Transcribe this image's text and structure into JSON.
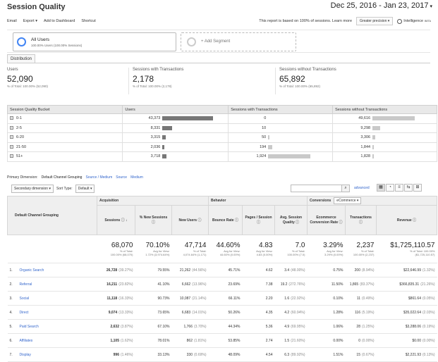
{
  "header": {
    "title": "Session Quality",
    "date_range": "Dec 25, 2016 - Jan 23, 2017"
  },
  "toolbar": {
    "items": [
      "Email",
      "Export",
      "Add to Dashboard",
      "Shortcut"
    ],
    "report_note": "This report is based on 100% of sessions. Learn more",
    "precision": "Greater precision",
    "intelligence": "Intelligence",
    "intelligence_badge": "BETA"
  },
  "segments": {
    "active_name": "All Users",
    "active_sub": "100.00% Users (100.00% Sessions)",
    "add_label": "+ Add Segment"
  },
  "tab": "Distribution",
  "summary": [
    {
      "label": "Users",
      "value": "52,090",
      "sub": "% of Total: 100.00% (52,090)"
    },
    {
      "label": "Sessions with Transactions",
      "value": "2,178",
      "sub": "% of Total: 100.00% (2,178)"
    },
    {
      "label": "Sessions without Transactions",
      "value": "65,892",
      "sub": "% of Total: 100.00% (65,892)"
    }
  ],
  "quality_table": {
    "headers": [
      "Session Quality Bucket",
      "Users",
      "Sessions with Transactions",
      "Sessions without Transactions"
    ],
    "rows": [
      {
        "bucket": "0-1",
        "users": "43,373",
        "users_frac": 1.0,
        "with": "0",
        "with_frac": 0.0,
        "without": "49,616",
        "without_frac": 1.0
      },
      {
        "bucket": "2-5",
        "users": "8,331",
        "users_frac": 0.19,
        "with": "10",
        "with_frac": 0.005,
        "without": "9,298",
        "without_frac": 0.19
      },
      {
        "bucket": "6-20",
        "users": "3,315",
        "users_frac": 0.076,
        "with": "50",
        "with_frac": 0.026,
        "without": "3,306",
        "without_frac": 0.067
      },
      {
        "bucket": "21-50",
        "users": "2,036",
        "users_frac": 0.047,
        "with": "194",
        "with_frac": 0.1,
        "without": "1,844",
        "without_frac": 0.037
      },
      {
        "bucket": "51+",
        "users": "3,718",
        "users_frac": 0.086,
        "with": "1,924",
        "with_frac": 1.0,
        "without": "1,828",
        "without_frac": 0.037
      }
    ]
  },
  "dimensions": {
    "label": "Primary Dimension:",
    "active": "Default Channel Grouping",
    "others": [
      "Source / Medium",
      "Source",
      "Medium"
    ]
  },
  "controls": {
    "secondary": "Secondary dimension",
    "sort_label": "Sort Type:",
    "sort_value": "Default",
    "advanced": "advanced"
  },
  "data_table": {
    "dim_header": "Default Channel Grouping",
    "groups": {
      "acquisition": "Acquisition",
      "behavior": "Behavior",
      "conversions": "Conversions",
      "conv_select": "eCommerce"
    },
    "columns": [
      "Sessions",
      "% New Sessions",
      "New Users",
      "Bounce Rate",
      "Pages / Session",
      "Avg. Session Quality",
      "Ecommerce Conversion Rate",
      "Transactions",
      "Revenue"
    ],
    "totals": [
      {
        "big": "68,070",
        "sub1": "% of Total:",
        "sub2": "100.00% (68,070)"
      },
      {
        "big": "70.10%",
        "sub1": "Avg for View:",
        "sub2": "1.72% (3,974.64%)"
      },
      {
        "big": "47,714",
        "sub1": "% of Total:",
        "sub2": "4,074.64% (1,171)"
      },
      {
        "big": "44.60%",
        "sub1": "Avg for View:",
        "sub2": "44.60% (0.00%)"
      },
      {
        "big": "4.83",
        "sub1": "Avg for View:",
        "sub2": "4.83 (0.00%)"
      },
      {
        "big": "7.0",
        "sub1": "% of Total:",
        "sub2": "100.00% (7.0)"
      },
      {
        "big": "3.29%",
        "sub1": "Avg for View:",
        "sub2": "3.29% (0.00%)"
      },
      {
        "big": "2,237",
        "sub1": "% of Total:",
        "sub2": "100.00% (2,237)"
      },
      {
        "big": "$1,725,110.57",
        "sub1": "% of Total: 100.00%",
        "sub2": "($1,725,110.57)"
      }
    ],
    "rows": [
      {
        "idx": "1.",
        "name": "Organic Search",
        "sessions": "26,728",
        "sessions_pct": "(39.27%)",
        "new_sessions": "79.55%",
        "new_users": "21,262",
        "new_users_pct": "(44.56%)",
        "bounce": "45.71%",
        "pages": "4.62",
        "quality": "3.4",
        "quality_pct": "(48.00%)",
        "conv": "0.75%",
        "trans": "200",
        "trans_pct": "(8.94%)",
        "revenue": "$22,646.99",
        "revenue_pct": "(1.32%)"
      },
      {
        "idx": "2.",
        "name": "Referral",
        "sessions": "16,211",
        "sessions_pct": "(23.82%)",
        "new_sessions": "41.10%",
        "new_users": "6,662",
        "new_users_pct": "(13.96%)",
        "bounce": "23.69%",
        "pages": "7.38",
        "quality": "19.2",
        "quality_pct": "(272.76%)",
        "conv": "11.50%",
        "trans": "1,865",
        "trans_pct": "(83.37%)",
        "revenue": "$366,835.31",
        "revenue_pct": "(21.26%)"
      },
      {
        "idx": "3.",
        "name": "Social",
        "sessions": "11,118",
        "sessions_pct": "(16.33%)",
        "new_sessions": "90.73%",
        "new_users": "10,087",
        "new_users_pct": "(21.14%)",
        "bounce": "66.11%",
        "pages": "2.20",
        "quality": "1.6",
        "quality_pct": "(22.92%)",
        "conv": "0.10%",
        "trans": "11",
        "trans_pct": "(0.49%)",
        "revenue": "$861.64",
        "revenue_pct": "(0.05%)"
      },
      {
        "idx": "4.",
        "name": "Direct",
        "sessions": "9,074",
        "sessions_pct": "(13.33%)",
        "new_sessions": "73.65%",
        "new_users": "6,683",
        "new_users_pct": "(14.01%)",
        "bounce": "50.26%",
        "pages": "4.35",
        "quality": "4.2",
        "quality_pct": "(60.94%)",
        "conv": "1.28%",
        "trans": "116",
        "trans_pct": "(5.19%)",
        "revenue": "$35,022.64",
        "revenue_pct": "(2.03%)"
      },
      {
        "idx": "5.",
        "name": "Paid Search",
        "sessions": "2,632",
        "sessions_pct": "(3.87%)",
        "new_sessions": "67.10%",
        "new_users": "1,766",
        "new_users_pct": "(3.70%)",
        "bounce": "44.34%",
        "pages": "5.36",
        "quality": "4.9",
        "quality_pct": "(69.95%)",
        "conv": "1.06%",
        "trans": "28",
        "trans_pct": "(1.25%)",
        "revenue": "$3,288.06",
        "revenue_pct": "(0.19%)"
      },
      {
        "idx": "6.",
        "name": "Affiliates",
        "sessions": "1,105",
        "sessions_pct": "(1.62%)",
        "new_sessions": "78.01%",
        "new_users": "862",
        "new_users_pct": "(1.81%)",
        "bounce": "53.85%",
        "pages": "2.74",
        "quality": "1.5",
        "quality_pct": "(21.60%)",
        "conv": "0.00%",
        "trans": "0",
        "trans_pct": "(0.00%)",
        "revenue": "$0.00",
        "revenue_pct": "(0.00%)"
      },
      {
        "idx": "7.",
        "name": "Display",
        "sessions": "996",
        "sessions_pct": "(1.46%)",
        "new_sessions": "33.13%",
        "new_users": "330",
        "new_users_pct": "(0.69%)",
        "bounce": "48.09%",
        "pages": "4.54",
        "quality": "6.3",
        "quality_pct": "(89.92%)",
        "conv": "1.51%",
        "trans": "15",
        "trans_pct": "(0.67%)",
        "revenue": "$2,221.93",
        "revenue_pct": "(0.13%)"
      }
    ]
  }
}
